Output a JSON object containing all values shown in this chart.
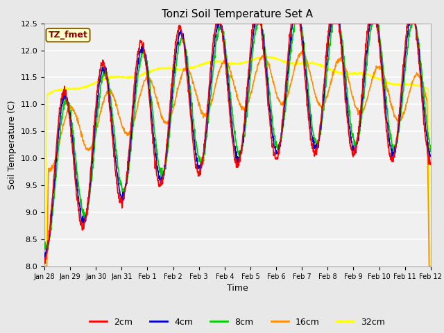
{
  "title": "Tonzi Soil Temperature Set A",
  "xlabel": "Time",
  "ylabel": "Soil Temperature (C)",
  "ylim": [
    8.0,
    12.5
  ],
  "annotation_text": "TZ_fmet",
  "annotation_color": "#8B0000",
  "annotation_bg": "#FFFFCC",
  "annotation_border": "#8B6914",
  "colors": {
    "2cm": "#FF0000",
    "4cm": "#0000CC",
    "8cm": "#00CC00",
    "16cm": "#FF8C00",
    "32cm": "#FFFF00"
  },
  "legend_labels": [
    "2cm",
    "4cm",
    "8cm",
    "16cm",
    "32cm"
  ],
  "fig_bg": "#E8E8E8",
  "plot_bg": "#F0F0F0",
  "x_tick_labels": [
    "Jan 28",
    "Jan 29",
    "Jan 30",
    "Jan 31",
    "Feb 1",
    "Feb 2",
    "Feb 3",
    "Feb 4",
    "Feb 5",
    "Feb 6",
    "Feb 7",
    "Feb 8",
    "Feb 9",
    "Feb 10",
    "Feb 11",
    "Feb 12"
  ],
  "n_points": 1440,
  "line_width": 1.2
}
